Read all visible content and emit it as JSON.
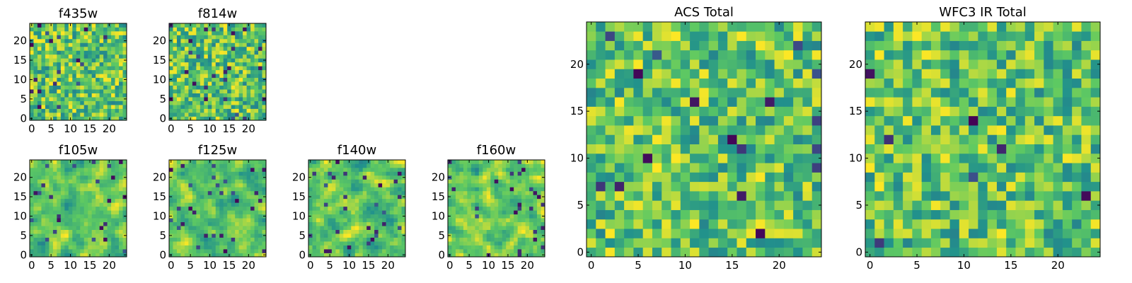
{
  "figure": {
    "colormap": "viridis",
    "cmap_colors": [
      "#440154",
      "#3b528b",
      "#21918c",
      "#5ec962",
      "#fde725"
    ]
  },
  "chart_data": [
    {
      "type": "heatmap",
      "title": "f435w",
      "size": 25,
      "xlim": [
        0,
        24
      ],
      "ylim": [
        0,
        24
      ],
      "xticks": [
        "0",
        "5",
        "10",
        "15",
        "20"
      ],
      "yticks": [
        "0",
        "5",
        "10",
        "15",
        "20"
      ],
      "seed": 11,
      "smooth": 0,
      "dark_frac": 0.04
    },
    {
      "type": "heatmap",
      "title": "f814w",
      "size": 25,
      "xlim": [
        0,
        24
      ],
      "ylim": [
        0,
        24
      ],
      "xticks": [
        "0",
        "5",
        "10",
        "15",
        "20"
      ],
      "yticks": [
        "0",
        "5",
        "10",
        "15",
        "20"
      ],
      "seed": 27,
      "smooth": 0,
      "dark_frac": 0.04
    },
    {
      "type": "heatmap",
      "title": "f105w",
      "size": 25,
      "xlim": [
        0,
        24
      ],
      "ylim": [
        0,
        24
      ],
      "xticks": [
        "0",
        "5",
        "10",
        "15",
        "20"
      ],
      "yticks": [
        "0",
        "5",
        "10",
        "15",
        "20"
      ],
      "seed": 43,
      "smooth": 1,
      "dark_frac": 0.03
    },
    {
      "type": "heatmap",
      "title": "f125w",
      "size": 25,
      "xlim": [
        0,
        24
      ],
      "ylim": [
        0,
        24
      ],
      "xticks": [
        "0",
        "5",
        "10",
        "15",
        "20"
      ],
      "yticks": [
        "0",
        "5",
        "10",
        "15",
        "20"
      ],
      "seed": 59,
      "smooth": 1,
      "dark_frac": 0.03
    },
    {
      "type": "heatmap",
      "title": "f140w",
      "size": 25,
      "xlim": [
        0,
        24
      ],
      "ylim": [
        0,
        24
      ],
      "xticks": [
        "0",
        "5",
        "10",
        "15",
        "20"
      ],
      "yticks": [
        "0",
        "5",
        "10",
        "15",
        "20"
      ],
      "seed": 71,
      "smooth": 1,
      "dark_frac": 0.04
    },
    {
      "type": "heatmap",
      "title": "f160w",
      "size": 25,
      "xlim": [
        0,
        24
      ],
      "ylim": [
        0,
        24
      ],
      "xticks": [
        "0",
        "5",
        "10",
        "15",
        "20"
      ],
      "yticks": [
        "0",
        "5",
        "10",
        "15",
        "20"
      ],
      "seed": 89,
      "smooth": 1,
      "dark_frac": 0.05
    },
    {
      "type": "heatmap",
      "title": "ACS Total",
      "size": 25,
      "xlim": [
        0,
        24
      ],
      "ylim": [
        0,
        24
      ],
      "xticks": [
        "0",
        "5",
        "10",
        "15",
        "20"
      ],
      "yticks": [
        "0",
        "5",
        "10",
        "15",
        "20"
      ],
      "seed": 101,
      "smooth": 0,
      "dark_frac": 0.03
    },
    {
      "type": "heatmap",
      "title": "WFC3 IR Total",
      "size": 25,
      "xlim": [
        0,
        24
      ],
      "ylim": [
        0,
        24
      ],
      "xticks": [
        "0",
        "5",
        "10",
        "15",
        "20"
      ],
      "yticks": [
        "0",
        "5",
        "10",
        "15",
        "20"
      ],
      "seed": 131,
      "smooth": 0,
      "dark_frac": 0.025
    }
  ]
}
